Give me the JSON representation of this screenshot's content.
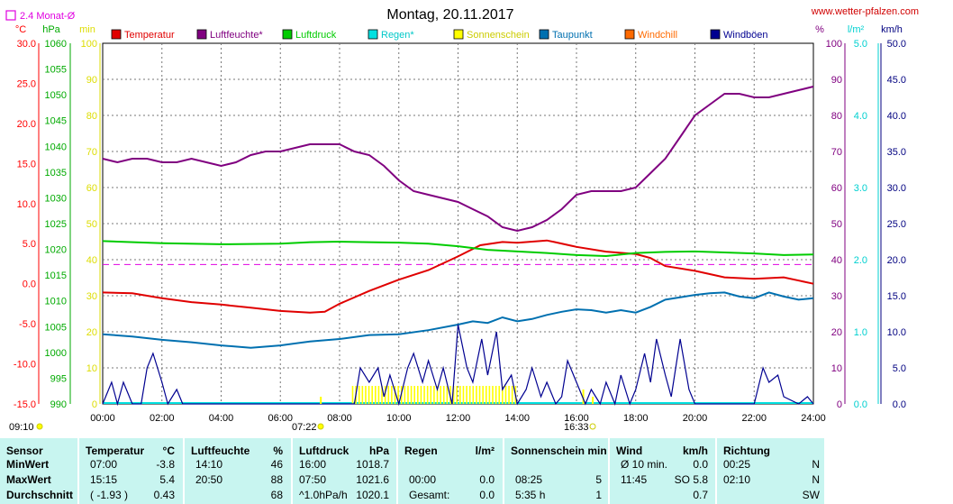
{
  "header": {
    "title": "Montag, 20.11.2017",
    "site": "www.wetter-pfalzen.com",
    "avg_label": "2.4 Monat-Ø"
  },
  "chart_data": {
    "type": "line",
    "title": "Montag, 20.11.2017",
    "x_ticks": [
      "00:00",
      "02:00",
      "04:00",
      "06:00",
      "08:00",
      "10:00",
      "12:00",
      "14:00",
      "16:00",
      "18:00",
      "20:00",
      "22:00",
      "24:00"
    ],
    "axes": {
      "temp": {
        "unit": "°C",
        "range": [
          -15,
          30
        ],
        "ticks": [
          "30.0",
          "25.0",
          "20.0",
          "15.0",
          "10.0",
          "5.0",
          "0.0",
          "-5.0",
          "-10.0",
          "-15.0"
        ],
        "color": "#ff0000"
      },
      "pressure": {
        "unit": "hPa",
        "range": [
          990,
          1060
        ],
        "ticks": [
          "1060",
          "1055",
          "1050",
          "1045",
          "1040",
          "1035",
          "1030",
          "1025",
          "1020",
          "1015",
          "1010",
          "1005",
          "1000",
          "995",
          "990"
        ],
        "color": "#00aa00"
      },
      "sun": {
        "unit": "min",
        "range": [
          0,
          100
        ],
        "ticks": [
          "100",
          "90",
          "80",
          "70",
          "60",
          "50",
          "40",
          "30",
          "20",
          "10",
          "0"
        ],
        "color": "#dddd00"
      },
      "humidity": {
        "unit": "%",
        "range": [
          0,
          100
        ],
        "ticks": [
          "100",
          "90",
          "80",
          "70",
          "60",
          "50",
          "40",
          "30",
          "20",
          "10",
          "0"
        ],
        "color": "#800080"
      },
      "rain": {
        "unit": "l/m²",
        "range": [
          0,
          5
        ],
        "ticks": [
          "5.0",
          "4.0",
          "3.0",
          "2.0",
          "1.0",
          "0.0"
        ],
        "color": "#00d0d0"
      },
      "wind": {
        "unit": "km/h",
        "range": [
          0,
          50
        ],
        "ticks": [
          "50.0",
          "45.0",
          "40.0",
          "35.0",
          "30.0",
          "25.0",
          "20.0",
          "15.0",
          "10.0",
          "5.0",
          "0.0"
        ],
        "color": "#000080"
      }
    },
    "legend": [
      {
        "name": "Temperatur",
        "color": "#e00000"
      },
      {
        "name": "Luftfeuchte*",
        "color": "#800080"
      },
      {
        "name": "Luftdruck",
        "color": "#00cc00"
      },
      {
        "name": "Regen*",
        "color": "#00e0e0"
      },
      {
        "name": "Sonnenschein",
        "color": "#ffff00"
      },
      {
        "name": "Taupunkt",
        "color": "#0070b0"
      },
      {
        "name": "Windchill",
        "color": "#ff6a00"
      },
      {
        "name": "Windböen",
        "color": "#000090"
      }
    ],
    "monthly_avg_temp": 2.4,
    "series": [
      {
        "name": "Temperatur",
        "axis": "temp",
        "color": "#e00000",
        "x": [
          0,
          1,
          2,
          3,
          4,
          5,
          6,
          7,
          7.5,
          8,
          9,
          10,
          11,
          12,
          12.75,
          13.5,
          14,
          15,
          15.25,
          16,
          17,
          18,
          18.5,
          19,
          20,
          21,
          22,
          23,
          24
        ],
        "y": [
          -1.1,
          -1.2,
          -1.8,
          -2.3,
          -2.6,
          -3.0,
          -3.4,
          -3.6,
          -3.5,
          -2.5,
          -0.9,
          0.5,
          1.7,
          3.4,
          4.8,
          5.2,
          5.1,
          5.4,
          5.2,
          4.6,
          4.0,
          3.7,
          3.2,
          2.2,
          1.6,
          0.8,
          0.6,
          0.8,
          0.0
        ]
      },
      {
        "name": "Luftfeuchte",
        "axis": "humidity",
        "color": "#800080",
        "x": [
          0,
          0.5,
          1,
          1.5,
          2,
          2.5,
          3,
          3.5,
          4,
          4.5,
          5,
          5.5,
          6,
          6.5,
          7,
          7.5,
          8,
          8.5,
          9,
          9.5,
          10,
          10.5,
          11,
          11.5,
          12,
          12.5,
          13,
          13.5,
          14,
          14.5,
          15,
          15.5,
          16,
          16.5,
          17,
          17.5,
          18,
          18.5,
          19,
          19.5,
          20,
          20.5,
          21,
          21.5,
          22,
          22.5,
          23,
          23.5,
          24
        ],
        "y": [
          68,
          67,
          68,
          68,
          67,
          67,
          68,
          67,
          66,
          67,
          69,
          70,
          70,
          71,
          72,
          72,
          72,
          70,
          69,
          66,
          62,
          59,
          58,
          57,
          56,
          54,
          52,
          49,
          48,
          49,
          51,
          54,
          58,
          59,
          59,
          59,
          60,
          64,
          68,
          74,
          80,
          83,
          86,
          86,
          85,
          85,
          86,
          87,
          88
        ]
      },
      {
        "name": "Luftdruck",
        "axis": "pressure",
        "color": "#00cc00",
        "x": [
          0,
          2,
          4,
          6,
          7,
          8,
          9,
          10,
          11,
          12,
          13,
          14,
          15,
          16,
          17,
          18,
          19,
          20,
          21,
          22,
          23,
          24
        ],
        "y": [
          1021.6,
          1021.2,
          1021.0,
          1021.1,
          1021.4,
          1021.5,
          1021.4,
          1021.3,
          1021.1,
          1020.6,
          1019.9,
          1019.6,
          1019.3,
          1018.9,
          1018.7,
          1019.3,
          1019.5,
          1019.6,
          1019.4,
          1019.2,
          1018.9,
          1019.0
        ]
      },
      {
        "name": "Taupunkt",
        "axis": "temp",
        "color": "#0070b0",
        "x": [
          0,
          1,
          2,
          3,
          4,
          5,
          6,
          7,
          8,
          9,
          10,
          11,
          12,
          12.5,
          13,
          13.5,
          14,
          14.5,
          15,
          15.5,
          16,
          16.5,
          17,
          17.5,
          18,
          18.5,
          19,
          19.5,
          20,
          20.5,
          21,
          21.5,
          22,
          22.5,
          23,
          23.5,
          24
        ],
        "y": [
          -6.3,
          -6.6,
          -7.0,
          -7.3,
          -7.7,
          -8.0,
          -7.7,
          -7.2,
          -6.9,
          -6.4,
          -6.3,
          -5.8,
          -5.1,
          -4.7,
          -4.9,
          -4.2,
          -4.7,
          -4.4,
          -3.9,
          -3.5,
          -3.2,
          -3.3,
          -3.6,
          -3.3,
          -3.6,
          -2.9,
          -2.0,
          -1.7,
          -1.4,
          -1.2,
          -1.1,
          -1.6,
          -1.8,
          -1.1,
          -1.6,
          -2.0,
          -1.8
        ]
      },
      {
        "name": "Windböen",
        "axis": "wind",
        "color": "#000090",
        "x": [
          0,
          0.3,
          0.5,
          0.7,
          1,
          1.3,
          1.5,
          1.7,
          2,
          2.2,
          2.5,
          2.7,
          3,
          6,
          8.5,
          8.7,
          9,
          9.3,
          9.5,
          9.7,
          10,
          10.3,
          10.5,
          10.8,
          11,
          11.3,
          11.5,
          11.8,
          12,
          12.3,
          12.5,
          12.8,
          13,
          13.3,
          13.5,
          13.8,
          14,
          14.3,
          14.5,
          14.8,
          15,
          15.3,
          15.5,
          15.7,
          16,
          16.3,
          16.5,
          16.8,
          17,
          17.3,
          17.5,
          17.8,
          18,
          18.3,
          18.5,
          18.7,
          19,
          19.2,
          19.5,
          19.8,
          20,
          22,
          22.3,
          22.5,
          22.8,
          23,
          23.5,
          23.8,
          24
        ],
        "y": [
          0,
          3,
          0,
          3,
          0,
          0,
          5,
          7,
          3,
          0,
          2,
          0,
          0,
          0,
          0,
          5,
          3,
          5,
          1,
          4,
          0,
          5,
          7,
          3,
          6,
          2,
          5,
          0,
          11,
          5,
          3,
          9,
          4,
          10,
          2,
          4,
          0,
          2,
          5,
          1,
          3,
          0,
          1,
          6,
          3,
          0,
          2,
          0,
          3,
          0,
          4,
          0,
          2,
          7,
          3,
          9,
          4,
          1,
          9,
          2,
          0,
          0,
          5,
          3,
          4,
          1,
          0,
          1,
          0
        ]
      }
    ],
    "sunshine": {
      "start": "08:25",
      "end": "13:55",
      "value_min": 5
    },
    "sunrise": "07:22",
    "sunset": "16:33",
    "corner_time": "09:10"
  },
  "table": {
    "columns": [
      {
        "title": "Sensor",
        "unit": "",
        "rows": [
          [
            "MinWert"
          ],
          [
            "MaxWert"
          ],
          [
            "Durchschnitt"
          ]
        ]
      },
      {
        "title": "Temperatur",
        "unit": "°C",
        "rows": [
          [
            "07:00",
            "-3.8"
          ],
          [
            "15:15",
            "5.4"
          ],
          [
            "( -1.93 )",
            "0.43"
          ]
        ]
      },
      {
        "title": "Luftfeuchte",
        "unit": "%",
        "rows": [
          [
            "14:10",
            "46"
          ],
          [
            "20:50",
            "88"
          ],
          [
            "",
            "68"
          ]
        ]
      },
      {
        "title": "Luftdruck",
        "unit": "hPa",
        "rows": [
          [
            "16:00",
            "1018.7"
          ],
          [
            "07:50",
            "1021.6"
          ],
          [
            "^1.0hPa/h",
            "1020.1"
          ]
        ]
      },
      {
        "title": "Regen",
        "unit": "l/m²",
        "rows": [
          [
            "",
            ""
          ],
          [
            "00:00",
            "0.0"
          ],
          [
            "Gesamt:",
            "0.0"
          ]
        ]
      },
      {
        "title": "Sonnenschein min",
        "unit": "",
        "rows": [
          [
            "",
            ""
          ],
          [
            "08:25",
            "5"
          ],
          [
            "5:35 h",
            "1"
          ]
        ]
      },
      {
        "title": "Wind",
        "unit": "km/h",
        "rows": [
          [
            "Ø 10 min.",
            "0.0"
          ],
          [
            "11:45",
            "SO 5.8"
          ],
          [
            "",
            "0.7"
          ]
        ]
      },
      {
        "title": "Richtung",
        "unit": "",
        "rows": [
          [
            "00:25",
            "N"
          ],
          [
            "02:10",
            "N"
          ],
          [
            "",
            "SW"
          ]
        ]
      }
    ]
  }
}
